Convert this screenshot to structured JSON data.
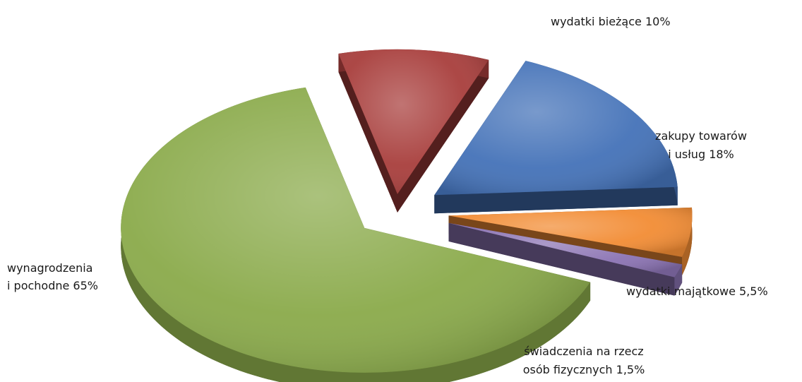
{
  "chart_data": {
    "type": "pie",
    "slices": [
      {
        "label_lines": [
          "wydatki bieżące 10%"
        ],
        "value": 10,
        "color": "#a83e3c"
      },
      {
        "label_lines": [
          "zakupy towarów",
          "i usług 18%"
        ],
        "value": 18,
        "color": "#4472b8"
      },
      {
        "label_lines": [
          "wydatki majątkowe 5,5%"
        ],
        "value": 5.5,
        "color": "#f28c34"
      },
      {
        "label_lines": [
          "świadczenia na rzecz",
          "osób fizycznych 1,5%"
        ],
        "value": 1.5,
        "color": "#8b73b3"
      },
      {
        "label_lines": [
          "wynagrodzenia",
          "i pochodne 65%"
        ],
        "value": 65,
        "color": "#8aaa4a"
      }
    ],
    "legend": "none",
    "exploded": true,
    "style": "3d"
  }
}
